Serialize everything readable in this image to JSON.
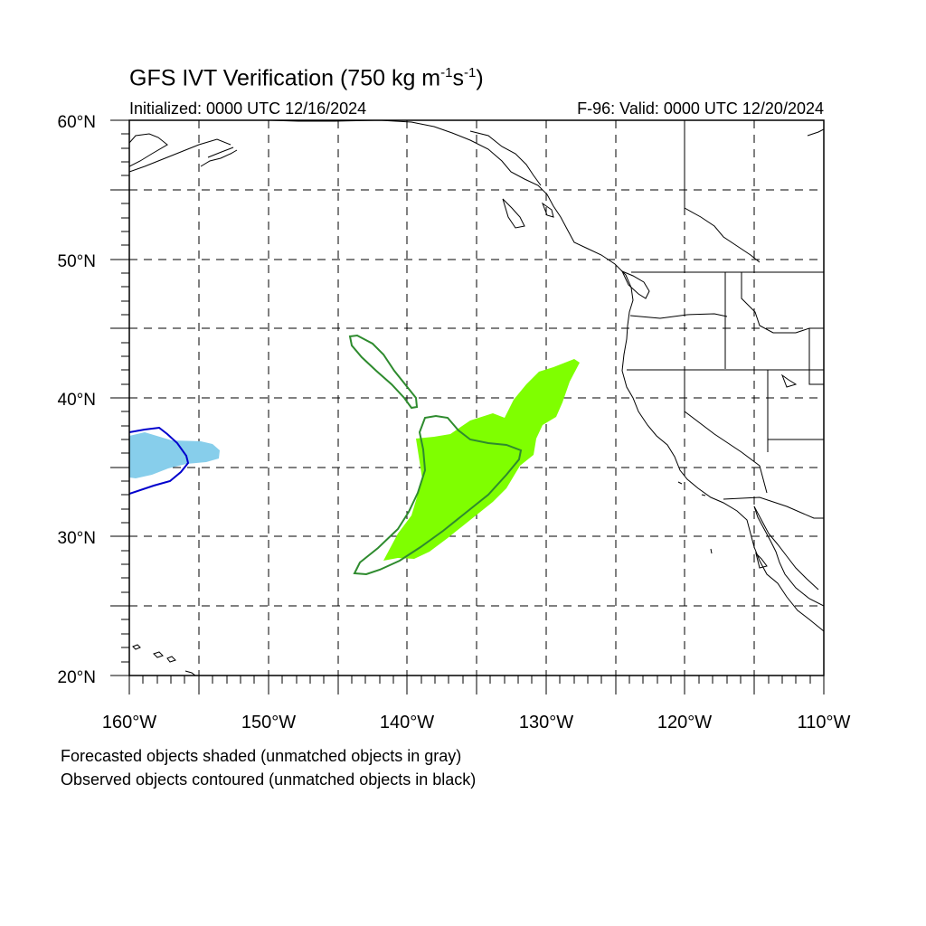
{
  "title": {
    "main": "GFS IVT Verification (750 kg m",
    "exp1": "-1",
    "mid": "s",
    "exp2": "-1",
    "end": ")"
  },
  "initialized": "Initialized: 0000 UTC 12/16/2024",
  "valid": "F-96: Valid: 0000 UTC 12/20/2024",
  "lat_labels": [
    "60°N",
    "50°N",
    "40°N",
    "30°N",
    "20°N"
  ],
  "lon_labels": [
    "160°W",
    "150°W",
    "140°W",
    "130°W",
    "120°W",
    "110°W"
  ],
  "extent": {
    "lon": [
      -160,
      -110
    ],
    "lat": [
      20,
      60
    ]
  },
  "footer": {
    "line1": "Forecasted objects shaded (unmatched objects in gray)",
    "line2": "Observed objects contoured (unmatched objects in black)"
  },
  "colors": {
    "matched_green_fill": "#7fff00",
    "matched_green_contour": "#2e8b2e",
    "matched_blue_fill": "#87ceeb",
    "matched_blue_contour": "#0000cd"
  }
}
